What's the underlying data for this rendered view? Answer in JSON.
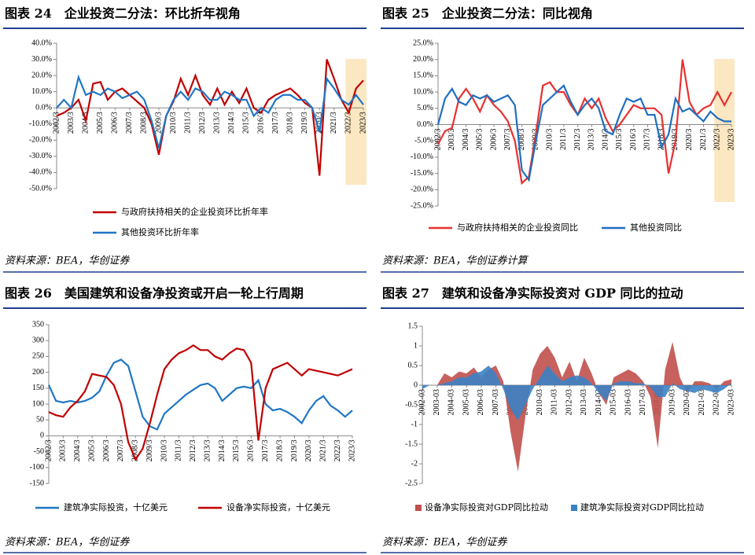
{
  "chart_data": [
    {
      "type": "line",
      "title": "图表 24　企业投资二分法：环比折年视角",
      "source": "资料来源：BEA，华创证券",
      "categories": [
        "2002/3",
        null,
        "2003/3",
        null,
        "2004/3",
        null,
        "2005/3",
        null,
        "2006/3",
        null,
        "2007/3",
        null,
        "2008/3",
        null,
        "2009/3",
        null,
        "2010/3",
        null,
        "2011/3",
        null,
        "2012/3",
        null,
        "2013/3",
        null,
        "2014/3",
        null,
        "2015/3",
        null,
        "2016/3",
        null,
        "2017/3",
        null,
        "2018/3",
        null,
        "2019/3",
        null,
        "2020/3",
        null,
        "2021/3",
        null,
        "2022/3",
        null,
        "2023/3"
      ],
      "series": [
        {
          "name": "与政府扶持相关的企业投资环比折年率",
          "color": "#c00000",
          "values": [
            -5,
            -3,
            0,
            5,
            -8,
            15,
            16,
            5,
            10,
            12,
            8,
            4,
            0,
            -10,
            -29,
            -5,
            4,
            18,
            8,
            20,
            8,
            2,
            12,
            2,
            10,
            3,
            12,
            0,
            -3,
            5,
            8,
            10,
            12,
            8,
            3,
            0,
            -42,
            30,
            18,
            5,
            -3,
            12,
            17
          ]
        },
        {
          "name": "其他投资环比折年率",
          "color": "#1f77c4",
          "values": [
            0,
            5,
            0,
            19,
            8,
            10,
            8,
            12,
            10,
            6,
            8,
            10,
            5,
            -8,
            -25,
            -5,
            5,
            10,
            5,
            12,
            10,
            5,
            5,
            10,
            8,
            5,
            5,
            -5,
            0,
            -3,
            5,
            8,
            8,
            5,
            5,
            0,
            -15,
            18,
            12,
            5,
            2,
            8,
            2
          ]
        }
      ],
      "ylim": [
        -50,
        40
      ],
      "yticks": [
        {
          "value": 40,
          "label": "40.0%"
        },
        {
          "value": 30,
          "label": "30.0%"
        },
        {
          "value": 20,
          "label": "20.0%"
        },
        {
          "value": 10,
          "label": "10.0%"
        },
        {
          "value": 0,
          "label": "0.0%"
        },
        {
          "value": -10,
          "label": "-10.0%"
        },
        {
          "value": -20,
          "label": "-20.0%"
        },
        {
          "value": -30,
          "label": "-30.0%"
        },
        {
          "value": -40,
          "label": "-40.0%"
        },
        {
          "value": -50,
          "label": "-50.0%"
        }
      ],
      "highlight": {
        "from": "2022/3",
        "to": "2023/3",
        "color": "#fbe7c2"
      },
      "legend": "bottom"
    },
    {
      "type": "line",
      "title": "图表 25　企业投资二分法：同比视角",
      "source": "资料来源：BEA，华创证券计算",
      "categories": [
        "2002/3",
        null,
        "2003/3",
        null,
        "2004/3",
        null,
        "2005/3",
        null,
        "2006/3",
        null,
        "2007/3",
        null,
        "2008/3",
        null,
        "2009/3",
        null,
        "2010/3",
        null,
        "2011/3",
        null,
        "2012/3",
        null,
        "2013/3",
        null,
        "2014/3",
        null,
        "2015/3",
        null,
        "2016/3",
        null,
        "2017/3",
        null,
        "2018/3",
        null,
        "2019/3",
        null,
        "2020/3",
        null,
        "2021/3",
        null,
        "2022/3",
        null,
        "2023/3"
      ],
      "series": [
        {
          "name": "与政府扶持相关的企业投资同比",
          "color": "#e8312f",
          "values": [
            -6,
            -2,
            -1,
            8,
            11,
            8,
            4,
            9,
            6,
            4,
            1,
            -5,
            -18,
            -16,
            -3,
            12,
            13,
            10,
            10,
            6,
            3,
            8,
            5,
            8,
            2,
            -2,
            0,
            3,
            6,
            5,
            5,
            5,
            3,
            -15,
            -5,
            20,
            7,
            3,
            5,
            6,
            10,
            6,
            10
          ]
        },
        {
          "name": "其他投资同比",
          "color": "#1f6fc0",
          "values": [
            0,
            8,
            11,
            7,
            6,
            9,
            8,
            9,
            7,
            8,
            9,
            6,
            -14,
            -17,
            -5,
            6,
            8,
            10,
            12,
            7,
            3,
            6,
            8,
            5,
            -2,
            -3,
            3,
            8,
            7,
            8,
            3,
            3,
            -7,
            -3,
            8,
            4,
            5,
            3,
            1,
            4,
            2,
            1,
            1
          ]
        }
      ],
      "ylim": [
        -25,
        25
      ],
      "yticks": [
        {
          "value": 25,
          "label": "25.0%"
        },
        {
          "value": 20,
          "label": "20.0%"
        },
        {
          "value": 15,
          "label": "15.0%"
        },
        {
          "value": 10,
          "label": "10.0%"
        },
        {
          "value": 5,
          "label": "5.0%"
        },
        {
          "value": 0,
          "label": "0.0%"
        },
        {
          "value": -5,
          "label": "-5.0%"
        },
        {
          "value": -10,
          "label": "-10.0%"
        },
        {
          "value": -15,
          "label": "-15.0%"
        },
        {
          "value": -20,
          "label": "-20.0%"
        },
        {
          "value": -25,
          "label": "-25.0%"
        }
      ],
      "highlight": {
        "from": "2022/3",
        "to": "2023/3",
        "color": "#fbe7c2"
      },
      "legend": "bottom"
    },
    {
      "type": "line",
      "title": "图表 26　美国建筑和设备净投资或开启一轮上行周期",
      "source": "资料来源：BEA，华创证券",
      "categories": [
        "2002/3",
        null,
        "2003/3",
        null,
        "2004/3",
        null,
        "2005/3",
        null,
        "2006/3",
        null,
        "2007/3",
        null,
        "2008/3",
        null,
        "2009/3",
        null,
        "2010/3",
        null,
        "2011/3",
        null,
        "2012/3",
        null,
        "2013/3",
        null,
        "2014/3",
        null,
        "2015/3",
        null,
        "2016/3",
        null,
        "2017/3",
        null,
        "2018/3",
        null,
        "2019/3",
        null,
        "2020/3",
        null,
        "2021/3",
        null,
        "2022/3",
        null,
        "2023/3"
      ],
      "series": [
        {
          "name": "建筑净实际投资，十亿美元",
          "color": "#1f77c4",
          "values": [
            160,
            110,
            105,
            110,
            105,
            110,
            120,
            140,
            190,
            230,
            240,
            220,
            140,
            60,
            30,
            20,
            70,
            90,
            110,
            130,
            145,
            160,
            165,
            150,
            110,
            130,
            150,
            155,
            150,
            175,
            100,
            80,
            85,
            75,
            60,
            40,
            80,
            110,
            125,
            95,
            80,
            60,
            80
          ]
        },
        {
          "name": "设备净实际投资，十亿美元",
          "color": "#c00000",
          "values": [
            75,
            65,
            60,
            90,
            110,
            140,
            195,
            190,
            185,
            160,
            100,
            -20,
            -75,
            -40,
            40,
            130,
            210,
            240,
            260,
            270,
            285,
            270,
            270,
            250,
            240,
            260,
            275,
            270,
            230,
            -15,
            150,
            210,
            220,
            230,
            210,
            190,
            210,
            205,
            200,
            195,
            190,
            200,
            210
          ]
        }
      ],
      "ylim": [
        -150,
        350
      ],
      "yticks": [
        350,
        300,
        250,
        200,
        150,
        100,
        50,
        0,
        -50,
        -100,
        -150
      ],
      "legend": "bottom"
    },
    {
      "type": "area",
      "title": "图表 27　建筑和设备净实际投资对 GDP 同比的拉动",
      "source": "资料来源：BEA，华创证券",
      "categories": [
        "2002-03",
        null,
        "2003-03",
        null,
        "2004-03",
        null,
        "2005-03",
        null,
        "2006-03",
        null,
        "2007-03",
        null,
        "2008-03",
        null,
        "2009-03",
        null,
        "2010-03",
        null,
        "2011-03",
        null,
        "2012-03",
        null,
        "2013-03",
        null,
        "2014-03",
        null,
        "2015-03",
        null,
        "2016-03",
        null,
        "2017-03",
        null,
        "2018-03",
        null,
        "2019-03",
        null,
        "2020-03",
        null,
        "2021-03",
        null,
        "2022-03",
        null,
        "2023-03"
      ],
      "series": [
        {
          "name": "设备净实际投资对GDP同比拉动",
          "color": "#c0504d",
          "values": [
            0,
            0,
            0,
            0.3,
            0.2,
            0.35,
            0.3,
            0.45,
            0.2,
            0.4,
            0.5,
            0.1,
            -1.2,
            -2.2,
            -0.8,
            0.4,
            0.8,
            1.0,
            0.7,
            0.2,
            0.6,
            0.1,
            0.7,
            0.3,
            -0.2,
            -0.5,
            0.2,
            0.3,
            0.4,
            0.3,
            0.1,
            -0.3,
            -1.6,
            0.4,
            1.1,
            0.2,
            -0.2,
            0.1,
            0.1,
            0.05,
            -0.1,
            0.1,
            0.15
          ]
        },
        {
          "name": "建筑净实际投资对GDP同比拉动",
          "color": "#3b82c4",
          "values": [
            -0.1,
            0,
            0,
            0.05,
            0.1,
            0.2,
            0.2,
            0.3,
            0.35,
            0.5,
            0.3,
            -0.1,
            -0.6,
            -0.9,
            -0.5,
            -0.1,
            0.2,
            0.5,
            0.3,
            0.1,
            0.2,
            0.25,
            0.2,
            0.05,
            -0.2,
            -0.4,
            0.05,
            0.1,
            0.1,
            0.05,
            0.05,
            -0.05,
            -0.3,
            -0.3,
            0.05,
            -0.1,
            -0.15,
            -0.2,
            -0.1,
            -0.15,
            -0.2,
            -0.1,
            0.05
          ]
        }
      ],
      "ylim": [
        -2.5,
        1.5
      ],
      "yticks": [
        1.5,
        1,
        0.5,
        0,
        -0.5,
        -1,
        -1.5,
        -2,
        -2.5
      ],
      "legend": "bottom"
    }
  ]
}
